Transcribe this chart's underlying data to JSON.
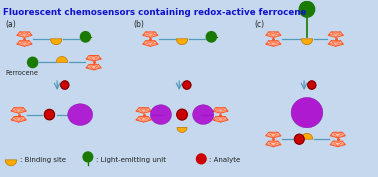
{
  "title": "Fluorescent chemosensors containing redox-active ferrocene",
  "title_color": "#1111CC",
  "bg_color": "#C5D8EE",
  "ferrocene_color": "#FF5522",
  "ferrocene_fill": "#FFCCBB",
  "binding_site_color": "#FFAA00",
  "light_emitting_color": "#1A7A00",
  "analyte_color": "#CC0000",
  "purple_color": "#AA00CC",
  "link_color": "#5599BB",
  "label_a": "(a)",
  "label_b": "(b)",
  "label_c": "(c)",
  "ferrocene_label": "Ferrocene",
  "legend_binding": ": Binding site",
  "legend_light": ": Light-emitting unit",
  "legend_analyte": ": Analyte"
}
